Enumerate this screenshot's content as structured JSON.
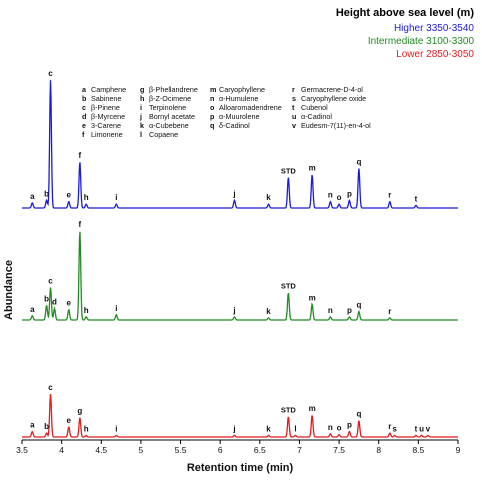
{
  "chart_data": {
    "type": "line",
    "title": "",
    "xlabel": "Retention time (min)",
    "ylabel": "Abundance",
    "xlim": [
      3.5,
      9
    ],
    "xticks": [
      "3.5",
      "4",
      "4.5",
      "5",
      "5.5",
      "6",
      "6.5",
      "7",
      "7.5",
      "8",
      "8.5",
      "9"
    ],
    "legend": {
      "title": "Height above sea level (m)",
      "position": "top-right",
      "entries": [
        {
          "name": "Higher 3350-3540",
          "color": "#1a1adb"
        },
        {
          "name": "Intermediate 3100-3300",
          "color": "#228b22"
        },
        {
          "name": "Lower 2850-3050",
          "color": "#e01b1b"
        }
      ]
    },
    "compound_key": [
      [
        "a",
        "Camphene"
      ],
      [
        "b",
        "Sabinene"
      ],
      [
        "c",
        "β-Pinene"
      ],
      [
        "d",
        "β-Myrcene"
      ],
      [
        "e",
        "3-Carene"
      ],
      [
        "f",
        "Limonene"
      ],
      [
        "g",
        "β-Phellandrene"
      ],
      [
        "h",
        "β-Z-Ocimene"
      ],
      [
        "i",
        "Terpinolene"
      ],
      [
        "j",
        "Bornyl acetate"
      ],
      [
        "k",
        "α-Cubebene"
      ],
      [
        "l",
        "Copaene"
      ],
      [
        "m",
        "Caryophyllene"
      ],
      [
        "n",
        "α-Humulene"
      ],
      [
        "o",
        "Alloaromadendrene"
      ],
      [
        "p",
        "α-Muurolene"
      ],
      [
        "q",
        "δ-Cadinol"
      ],
      [
        "r",
        "Germacrene-D-4-ol"
      ],
      [
        "s",
        "Caryophyllene oxide"
      ],
      [
        "t",
        "Cubenol"
      ],
      [
        "u",
        "α-Cadinol"
      ],
      [
        "v",
        "Eudesm-7(11)-en-4-ol"
      ]
    ],
    "series": [
      {
        "name": "Higher 3350-3540",
        "color": "#1a1adb",
        "peaks": [
          {
            "x": 3.63,
            "h": 0.04,
            "label": "a"
          },
          {
            "x": 3.81,
            "h": 0.06,
            "label": "b"
          },
          {
            "x": 3.86,
            "h": 1.0,
            "label": "c"
          },
          {
            "x": 4.09,
            "h": 0.05,
            "label": "e"
          },
          {
            "x": 4.23,
            "h": 0.36,
            "label": "f"
          },
          {
            "x": 4.31,
            "h": 0.03,
            "label": "h"
          },
          {
            "x": 4.69,
            "h": 0.03,
            "label": "i"
          },
          {
            "x": 6.18,
            "h": 0.06,
            "label": "j"
          },
          {
            "x": 6.61,
            "h": 0.03,
            "label": "k"
          },
          {
            "x": 6.86,
            "h": 0.24,
            "label": "STD"
          },
          {
            "x": 7.16,
            "h": 0.26,
            "label": "m"
          },
          {
            "x": 7.39,
            "h": 0.05,
            "label": "n"
          },
          {
            "x": 7.5,
            "h": 0.03,
            "label": "o"
          },
          {
            "x": 7.63,
            "h": 0.06,
            "label": "p"
          },
          {
            "x": 7.75,
            "h": 0.31,
            "label": "q"
          },
          {
            "x": 8.14,
            "h": 0.05,
            "label": "r"
          },
          {
            "x": 8.47,
            "h": 0.02,
            "label": "t"
          }
        ]
      },
      {
        "name": "Intermediate 3100-3300",
        "color": "#228b22",
        "peaks": [
          {
            "x": 3.63,
            "h": 0.04,
            "label": "a"
          },
          {
            "x": 3.81,
            "h": 0.14,
            "label": "b"
          },
          {
            "x": 3.86,
            "h": 0.31,
            "label": "c"
          },
          {
            "x": 3.91,
            "h": 0.11,
            "label": "d"
          },
          {
            "x": 4.09,
            "h": 0.1,
            "label": "e"
          },
          {
            "x": 4.23,
            "h": 0.85,
            "label": "f"
          },
          {
            "x": 4.31,
            "h": 0.03,
            "label": "h"
          },
          {
            "x": 4.69,
            "h": 0.05,
            "label": "i"
          },
          {
            "x": 6.18,
            "h": 0.03,
            "label": "j"
          },
          {
            "x": 6.61,
            "h": 0.02,
            "label": "k"
          },
          {
            "x": 6.86,
            "h": 0.26,
            "label": "STD"
          },
          {
            "x": 7.16,
            "h": 0.15,
            "label": "m"
          },
          {
            "x": 7.39,
            "h": 0.03,
            "label": "n"
          },
          {
            "x": 7.63,
            "h": 0.03,
            "label": "p"
          },
          {
            "x": 7.75,
            "h": 0.08,
            "label": "q"
          },
          {
            "x": 8.14,
            "h": 0.02,
            "label": "r"
          }
        ]
      },
      {
        "name": "Lower 2850-3050",
        "color": "#e01b1b",
        "peaks": [
          {
            "x": 3.63,
            "h": 0.07,
            "label": "a"
          },
          {
            "x": 3.81,
            "h": 0.05,
            "label": "b"
          },
          {
            "x": 3.86,
            "h": 0.55,
            "label": "c"
          },
          {
            "x": 4.09,
            "h": 0.13,
            "label": "e"
          },
          {
            "x": 4.23,
            "h": 0.25,
            "label": "g"
          },
          {
            "x": 4.31,
            "h": 0.02,
            "label": "h"
          },
          {
            "x": 4.69,
            "h": 0.02,
            "label": "i"
          },
          {
            "x": 6.18,
            "h": 0.02,
            "label": "j"
          },
          {
            "x": 6.61,
            "h": 0.02,
            "label": "k"
          },
          {
            "x": 6.86,
            "h": 0.26,
            "label": "STD"
          },
          {
            "x": 6.95,
            "h": 0.02,
            "label": "l"
          },
          {
            "x": 7.16,
            "h": 0.28,
            "label": "m"
          },
          {
            "x": 7.39,
            "h": 0.04,
            "label": "n"
          },
          {
            "x": 7.5,
            "h": 0.03,
            "label": "o"
          },
          {
            "x": 7.63,
            "h": 0.07,
            "label": "p"
          },
          {
            "x": 7.75,
            "h": 0.21,
            "label": "q"
          },
          {
            "x": 8.14,
            "h": 0.05,
            "label": "r"
          },
          {
            "x": 8.2,
            "h": 0.02,
            "label": "s"
          },
          {
            "x": 8.47,
            "h": 0.02,
            "label": "t"
          },
          {
            "x": 8.54,
            "h": 0.02,
            "label": "u"
          },
          {
            "x": 8.62,
            "h": 0.02,
            "label": "v"
          }
        ]
      }
    ]
  }
}
